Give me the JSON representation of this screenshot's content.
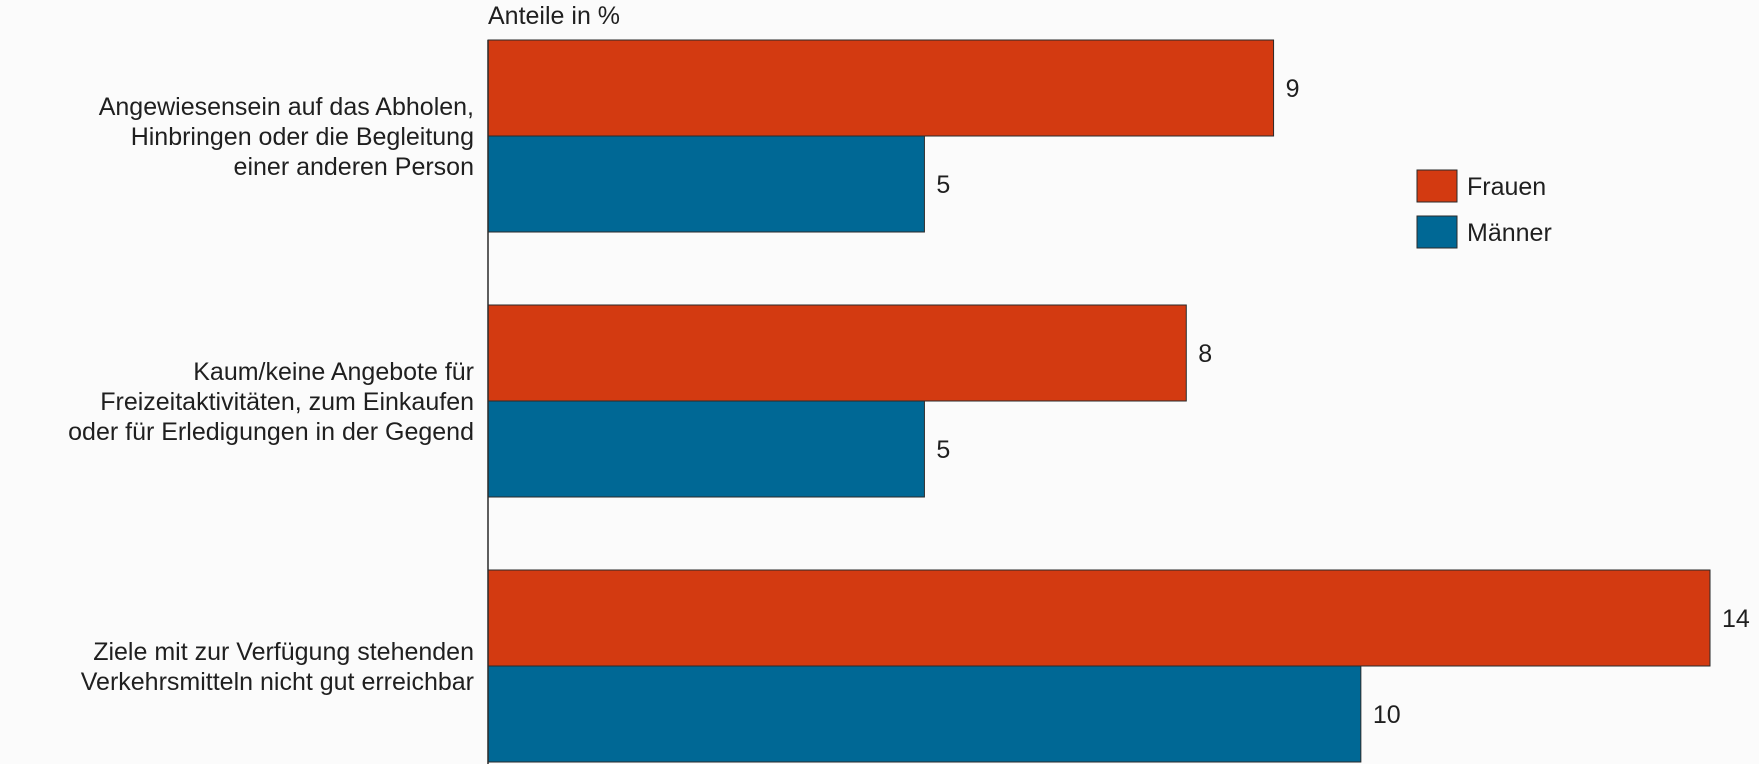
{
  "chart_data": {
    "type": "bar",
    "orientation": "horizontal",
    "title": "",
    "unit_label": "Anteile in %",
    "categories": [
      [
        "Angewiesensein auf das Abholen,",
        "Hinbringen oder die Begleitung",
        "einer anderen Person"
      ],
      [
        "Kaum/keine Angebote für",
        "Freizeitaktivitäten, zum Einkaufen",
        "oder für Erledigungen in der Gegend"
      ],
      [
        "Ziele mit zur Verfügung stehenden",
        "Verkehrsmitteln nicht gut erreichbar"
      ]
    ],
    "series": [
      {
        "name": "Frauen",
        "values": [
          9,
          8,
          14
        ],
        "color": "#d33a11"
      },
      {
        "name": "Männer",
        "values": [
          5,
          5,
          10
        ],
        "color": "#006895"
      }
    ],
    "xlim": [
      0,
      14
    ],
    "grid": false,
    "legend": {
      "position": "top-right"
    }
  }
}
